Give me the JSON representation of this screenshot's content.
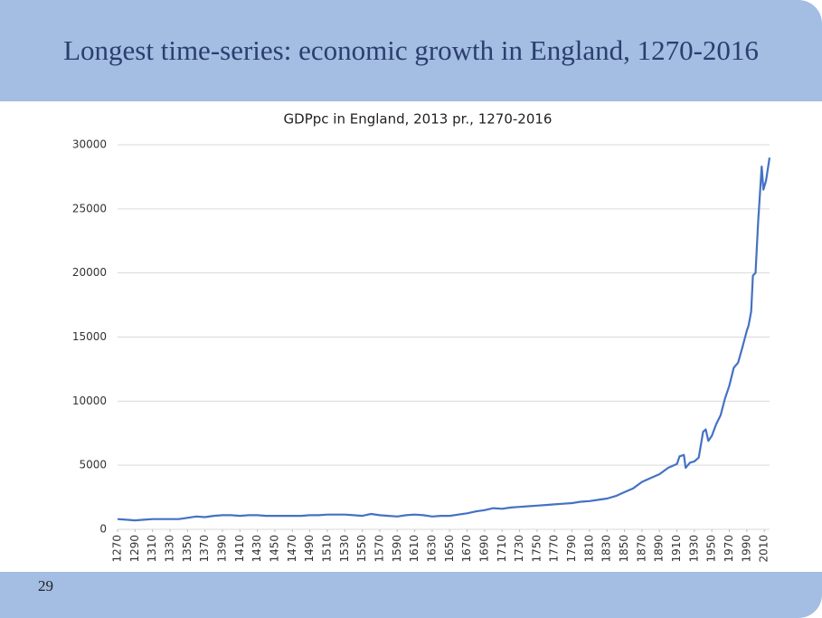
{
  "slide": {
    "title": "Longest time-series: economic growth in England, 1270-2016",
    "page_number": "29"
  },
  "chart_data": {
    "type": "line",
    "title": "GDPpc in England, 2013 pr., 1270-2016",
    "x": [
      1270,
      1280,
      1290,
      1300,
      1310,
      1320,
      1330,
      1340,
      1350,
      1360,
      1370,
      1380,
      1390,
      1400,
      1410,
      1420,
      1430,
      1440,
      1450,
      1460,
      1470,
      1480,
      1490,
      1500,
      1510,
      1520,
      1530,
      1540,
      1550,
      1560,
      1570,
      1580,
      1590,
      1600,
      1610,
      1620,
      1630,
      1640,
      1650,
      1660,
      1670,
      1680,
      1690,
      1700,
      1710,
      1720,
      1730,
      1740,
      1750,
      1760,
      1770,
      1780,
      1790,
      1800,
      1810,
      1820,
      1830,
      1840,
      1850,
      1860,
      1870,
      1880,
      1890,
      1900,
      1910,
      1913,
      1918,
      1920,
      1925,
      1930,
      1935,
      1940,
      1943,
      1946,
      1950,
      1955,
      1960,
      1965,
      1970,
      1975,
      1980,
      1985,
      1990,
      1992,
      1995,
      1997,
      2000,
      2003,
      2007,
      2009,
      2012,
      2016
    ],
    "series": [
      {
        "name": "GDPpc",
        "color": "#4472c4",
        "values": [
          800,
          750,
          700,
          750,
          800,
          800,
          800,
          800,
          900,
          1000,
          950,
          1050,
          1100,
          1100,
          1050,
          1100,
          1100,
          1050,
          1050,
          1050,
          1050,
          1050,
          1100,
          1100,
          1150,
          1150,
          1150,
          1100,
          1050,
          1200,
          1100,
          1050,
          1000,
          1100,
          1150,
          1100,
          1000,
          1050,
          1050,
          1150,
          1250,
          1400,
          1500,
          1650,
          1600,
          1700,
          1750,
          1800,
          1850,
          1900,
          1950,
          2000,
          2050,
          2150,
          2200,
          2300,
          2400,
          2600,
          2900,
          3200,
          3700,
          4000,
          4300,
          4800,
          5100,
          5700,
          5800,
          4800,
          5200,
          5300,
          5600,
          7600,
          7800,
          6900,
          7300,
          8200,
          8900,
          10200,
          11200,
          12600,
          13000,
          14200,
          15500,
          15900,
          17000,
          19800,
          20000,
          24000,
          28300,
          26500,
          27200,
          29000
        ]
      }
    ],
    "xlim": [
      1270,
      2016
    ],
    "xticks": [
      1270,
      1290,
      1310,
      1330,
      1350,
      1370,
      1390,
      1410,
      1430,
      1450,
      1470,
      1490,
      1510,
      1530,
      1550,
      1570,
      1590,
      1610,
      1630,
      1650,
      1670,
      1690,
      1710,
      1730,
      1750,
      1770,
      1790,
      1810,
      1830,
      1850,
      1870,
      1890,
      1910,
      1930,
      1950,
      1970,
      1990,
      2010
    ],
    "ylim": [
      0,
      30000
    ],
    "yticks": [
      0,
      5000,
      10000,
      15000,
      20000,
      25000,
      30000
    ],
    "grid": true
  }
}
